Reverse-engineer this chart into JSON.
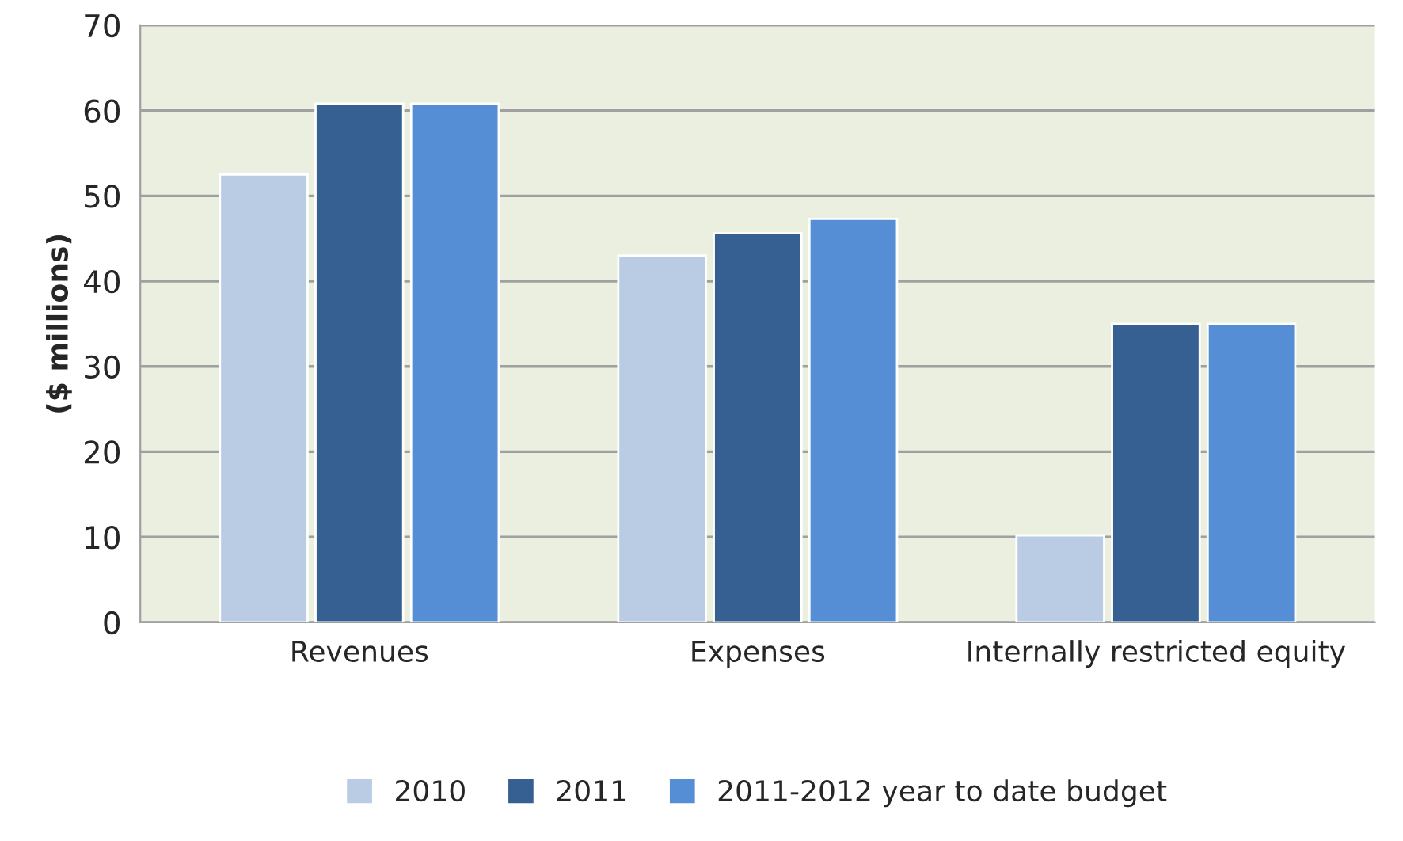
{
  "chart_data": {
    "type": "bar",
    "ylabel": "($ millions)",
    "categories": [
      "Revenues",
      "Expenses",
      "Internally restricted equity"
    ],
    "series": [
      {
        "name": "2010",
        "color": "#b9cce4",
        "values": [
          52.5,
          43,
          10.2
        ]
      },
      {
        "name": "2011",
        "color": "#376092",
        "values": [
          60.8,
          45.6,
          35
        ]
      },
      {
        "name": "2011-2012 year to date budget",
        "color": "#558ed5",
        "values": [
          60.8,
          47.3,
          35
        ]
      }
    ],
    "ylim": [
      0,
      70
    ],
    "yticks": [
      0,
      10,
      20,
      30,
      40,
      50,
      60,
      70
    ],
    "grid": "y",
    "legend": "bottom"
  }
}
